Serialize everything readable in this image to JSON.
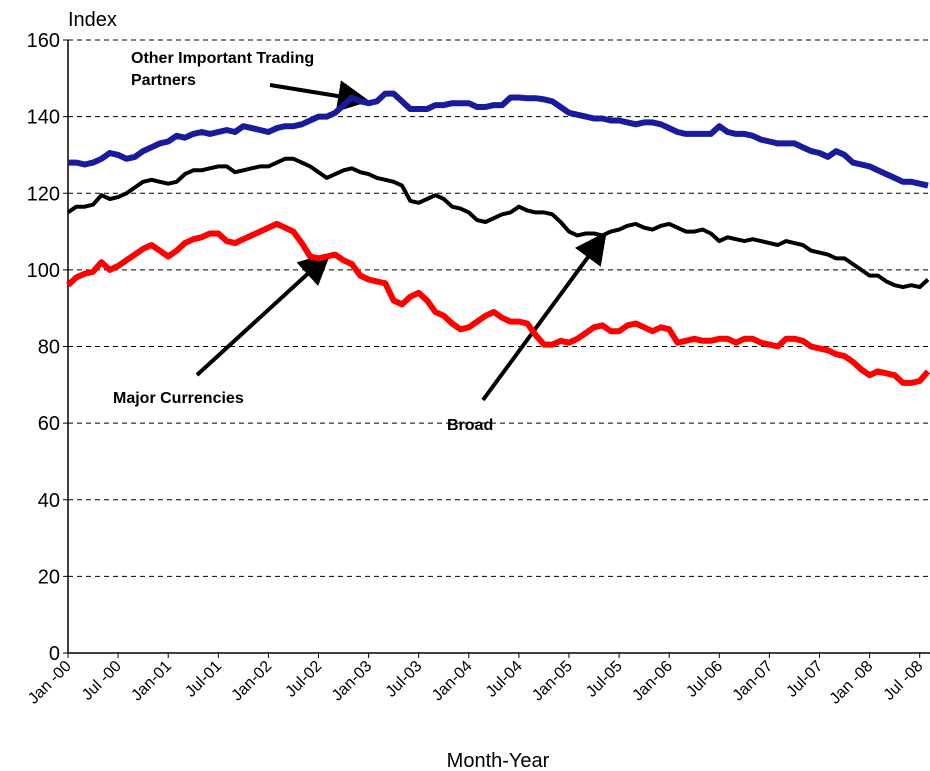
{
  "chart_data": {
    "type": "line",
    "y_label": "Index",
    "x_label": "Month-Year",
    "ylim": [
      0,
      160
    ],
    "yticks": [
      0,
      20,
      40,
      60,
      80,
      100,
      120,
      140,
      160
    ],
    "grid": true,
    "categories": [
      "Jan -00",
      null,
      null,
      null,
      null,
      null,
      "Jul -00",
      null,
      null,
      null,
      null,
      null,
      "Jan-01",
      null,
      null,
      null,
      null,
      null,
      "Jul-01",
      null,
      null,
      null,
      null,
      null,
      "Jan-02",
      null,
      null,
      null,
      null,
      null,
      "Jul-02",
      null,
      null,
      null,
      null,
      null,
      "Jan-03",
      null,
      null,
      null,
      null,
      null,
      "Jul-03",
      null,
      null,
      null,
      null,
      null,
      "Jan-04",
      null,
      null,
      null,
      null,
      null,
      "Jul-04",
      null,
      null,
      null,
      null,
      null,
      "Jan-05",
      null,
      null,
      null,
      null,
      null,
      "Jul-05",
      null,
      null,
      null,
      null,
      null,
      "Jan-06",
      null,
      null,
      null,
      null,
      null,
      "Jul-06",
      null,
      null,
      null,
      null,
      null,
      "Jan-07",
      null,
      null,
      null,
      null,
      null,
      "Jul-07",
      null,
      null,
      null,
      null,
      null,
      "Jan -08",
      null,
      null,
      null,
      null,
      null,
      "Jul -08",
      null
    ],
    "series": [
      {
        "name": "Broad",
        "color": "#000000",
        "width": 4,
        "values": [
          115,
          116.5,
          116.5,
          117,
          119.5,
          118.5,
          119,
          120,
          121.5,
          123,
          123.5,
          123,
          122.5,
          123,
          125,
          126,
          126,
          126.5,
          127,
          127,
          125.5,
          126,
          126.5,
          127,
          127,
          128,
          129,
          129,
          128,
          127,
          125.5,
          124,
          125,
          126,
          126.5,
          125.5,
          125,
          124,
          123.5,
          123,
          122,
          118,
          117.5,
          118.5,
          119.5,
          118.5,
          116.5,
          116,
          115,
          113,
          112.5,
          113.5,
          114.5,
          115,
          116.5,
          115.5,
          115,
          115,
          114.5,
          112.5,
          110,
          109,
          109.5,
          109.5,
          109,
          110,
          110.5,
          111.5,
          112,
          111,
          110.5,
          111.5,
          112,
          111,
          110,
          110,
          110.5,
          109.5,
          107.5,
          108.5,
          108,
          107.5,
          108,
          107.5,
          107,
          106.5,
          107.5,
          107,
          106.5,
          105,
          104.5,
          104,
          103,
          103,
          101.5,
          100,
          98.5,
          98.5,
          97,
          96,
          95.5,
          96,
          95.5,
          97.5
        ]
      },
      {
        "name": "Major Currencies",
        "color": "#ff0000",
        "width": 6,
        "values": [
          96,
          98,
          99,
          99.5,
          102,
          100,
          101,
          102.5,
          104,
          105.5,
          106.5,
          105,
          103.5,
          105,
          107,
          108,
          108.5,
          109.5,
          109.5,
          107.5,
          107,
          108,
          109,
          110,
          111,
          112,
          111,
          110,
          107,
          103.5,
          103,
          103.5,
          104,
          102.5,
          101.5,
          98.5,
          97.5,
          97,
          96.5,
          92,
          91,
          93,
          94,
          92,
          89,
          88,
          86,
          84.5,
          85,
          86.5,
          88,
          89,
          87.5,
          86.5,
          86.5,
          86,
          83,
          80.5,
          80.5,
          81.5,
          81,
          82,
          83.5,
          85,
          85.5,
          84,
          84,
          85.5,
          86,
          85,
          84,
          85,
          84.5,
          81,
          81.5,
          82,
          81.5,
          81.5,
          82,
          82,
          81,
          82,
          82,
          81,
          80.5,
          80,
          82,
          82,
          81.5,
          80,
          79.5,
          79,
          78,
          77.5,
          76,
          74,
          72.5,
          73.5,
          73,
          72.5,
          70.5,
          70.5,
          71,
          73.5
        ]
      },
      {
        "name": "Other Important Trading Partners",
        "color": "#1a1a9c",
        "width": 6,
        "values": [
          128,
          128,
          127.5,
          128,
          129,
          130.5,
          130,
          129,
          129.5,
          131,
          132,
          133,
          133.5,
          135,
          134.5,
          135.5,
          136,
          135.5,
          136,
          136.5,
          136,
          137.5,
          137,
          136.5,
          136,
          137,
          137.5,
          137.5,
          138,
          139,
          140,
          140,
          141,
          143,
          145,
          144,
          143.5,
          144,
          146,
          146,
          144,
          142,
          142,
          142,
          143,
          143,
          143.5,
          143.5,
          143.5,
          142.5,
          142.5,
          143,
          143,
          145,
          145,
          144.8,
          144.8,
          144.5,
          144,
          142.5,
          141,
          140.5,
          140,
          139.5,
          139.5,
          139,
          139,
          138.5,
          138,
          138.5,
          138.5,
          138,
          137,
          136,
          135.5,
          135.5,
          135.5,
          135.5,
          137.5,
          136,
          135.5,
          135.5,
          135,
          134,
          133.5,
          133,
          133,
          133,
          132,
          131,
          130.5,
          129.5,
          131,
          130,
          128,
          127.5,
          127,
          126,
          125,
          124,
          123,
          123,
          122.5,
          122
        ]
      }
    ],
    "annotations": [
      {
        "lines": [
          "Other Important Trading",
          "Partners"
        ]
      },
      {
        "lines": [
          "Major Currencies"
        ]
      },
      {
        "lines": [
          "Broad"
        ]
      }
    ]
  }
}
